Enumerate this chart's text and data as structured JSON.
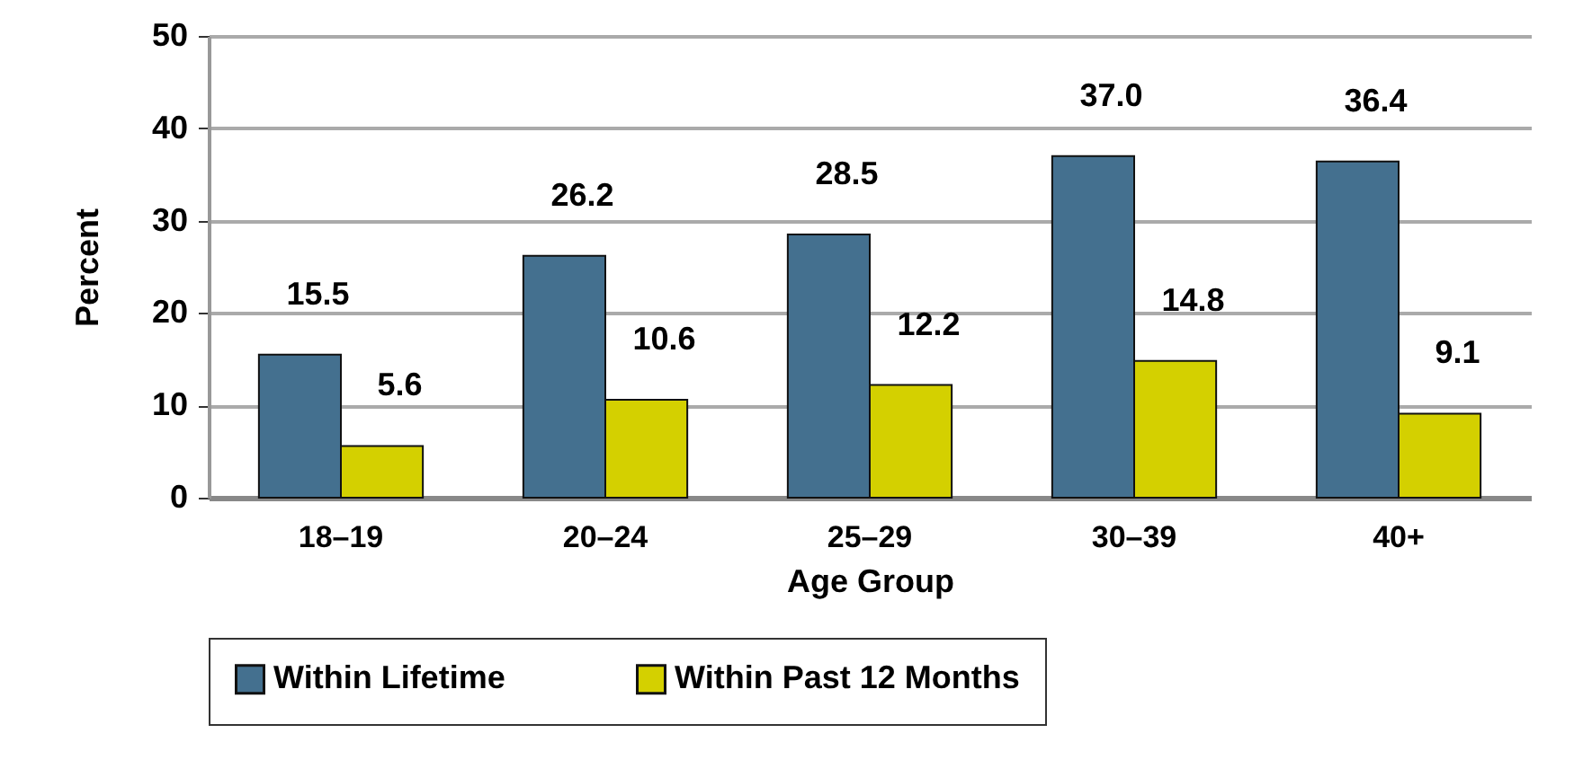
{
  "chart_data": {
    "type": "bar",
    "xlabel": "Age Group",
    "ylabel": "Percent",
    "categories": [
      "18–19",
      "20–24",
      "25–29",
      "30–39",
      "40+"
    ],
    "series": [
      {
        "name": "Within Lifetime",
        "color": "#44708f",
        "values": [
          15.5,
          26.2,
          28.5,
          37.0,
          36.4
        ],
        "value_labels": [
          "15.5",
          "26.2",
          "28.5",
          "37.0",
          "36.4"
        ]
      },
      {
        "name": "Within Past 12 Months",
        "color": "#d4d000",
        "values": [
          5.6,
          10.6,
          12.2,
          14.8,
          9.1
        ],
        "value_labels": [
          "5.6",
          "10.6",
          "12.2",
          "14.8",
          "9.1"
        ]
      }
    ],
    "ylim": [
      0,
      50
    ],
    "yticks": [
      0,
      10,
      20,
      30,
      40,
      50
    ],
    "grid": "y",
    "legend": "bottom"
  }
}
